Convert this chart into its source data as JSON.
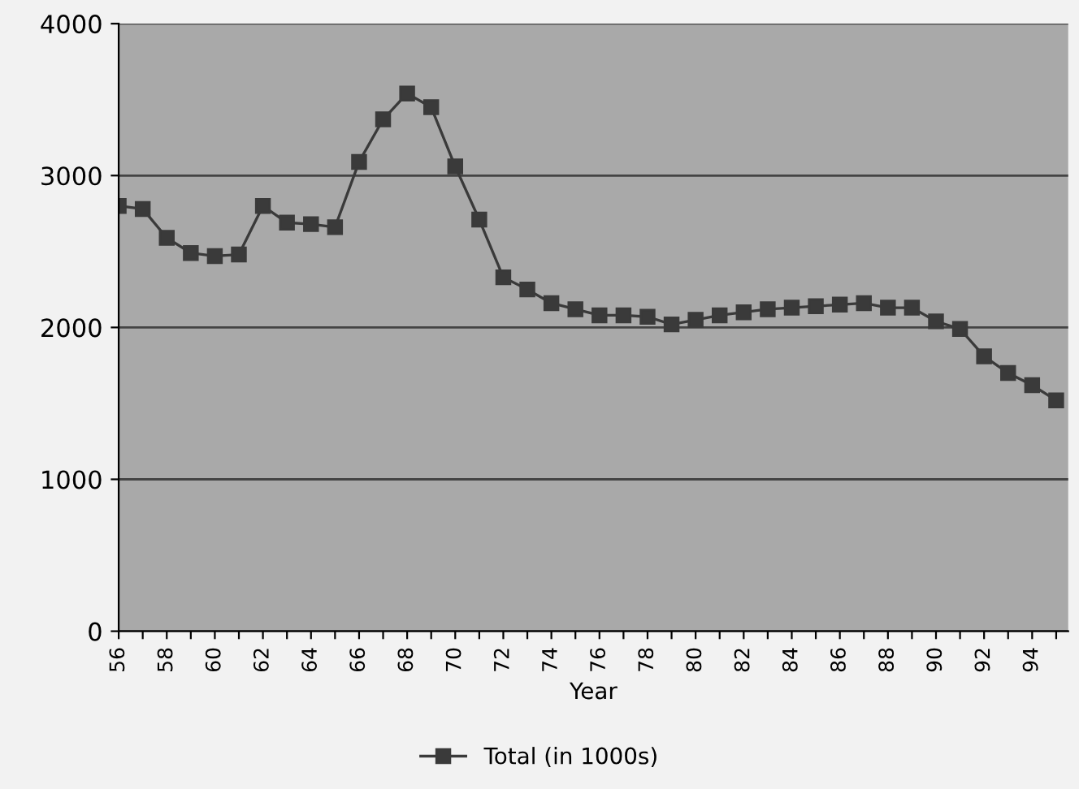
{
  "chart_data": {
    "type": "line",
    "xlabel": "Year",
    "x": [
      56,
      57,
      58,
      59,
      60,
      61,
      62,
      63,
      64,
      65,
      66,
      67,
      68,
      69,
      70,
      71,
      72,
      73,
      74,
      75,
      76,
      77,
      78,
      79,
      80,
      81,
      82,
      83,
      84,
      85,
      86,
      87,
      88,
      89,
      90,
      91,
      92,
      93,
      94,
      95
    ],
    "series": [
      {
        "name": "Total (in 1000s)",
        "color": "#3a3a3a",
        "values": [
          2800,
          2780,
          2590,
          2490,
          2470,
          2480,
          2800,
          2690,
          2680,
          2660,
          3090,
          3370,
          3540,
          3450,
          3060,
          2710,
          2330,
          2250,
          2160,
          2120,
          2080,
          2080,
          2070,
          2020,
          2050,
          2080,
          2100,
          2120,
          2130,
          2140,
          2150,
          2160,
          2130,
          2130,
          2040,
          1990,
          1810,
          1700,
          1620,
          1520
        ]
      }
    ],
    "xlim": [
      56,
      95.5
    ],
    "xticks": [
      56,
      {
        "value": 57,
        "label": null
      },
      58,
      {
        "value": 59,
        "label": null
      },
      60,
      {
        "value": 61,
        "label": null
      },
      62,
      {
        "value": 63,
        "label": null
      },
      64,
      {
        "value": 65,
        "label": null
      },
      66,
      {
        "value": 67,
        "label": null
      },
      68,
      {
        "value": 69,
        "label": null
      },
      70,
      {
        "value": 71,
        "label": null
      },
      72,
      {
        "value": 73,
        "label": null
      },
      74,
      {
        "value": 75,
        "label": null
      },
      76,
      {
        "value": 77,
        "label": null
      },
      78,
      {
        "value": 79,
        "label": null
      },
      80,
      {
        "value": 81,
        "label": null
      },
      82,
      {
        "value": 83,
        "label": null
      },
      84,
      {
        "value": 85,
        "label": null
      },
      86,
      {
        "value": 87,
        "label": null
      },
      88,
      {
        "value": 89,
        "label": null
      },
      90,
      {
        "value": 91,
        "label": null
      },
      92,
      {
        "value": 93,
        "label": null
      },
      94,
      {
        "value": 95,
        "label": null
      }
    ],
    "ylim": [
      0,
      4000
    ],
    "yticks": [
      0,
      1000,
      2000,
      3000,
      4000
    ],
    "grid": "y",
    "legend": "bottom",
    "marker": "square",
    "line_style": "solid"
  }
}
